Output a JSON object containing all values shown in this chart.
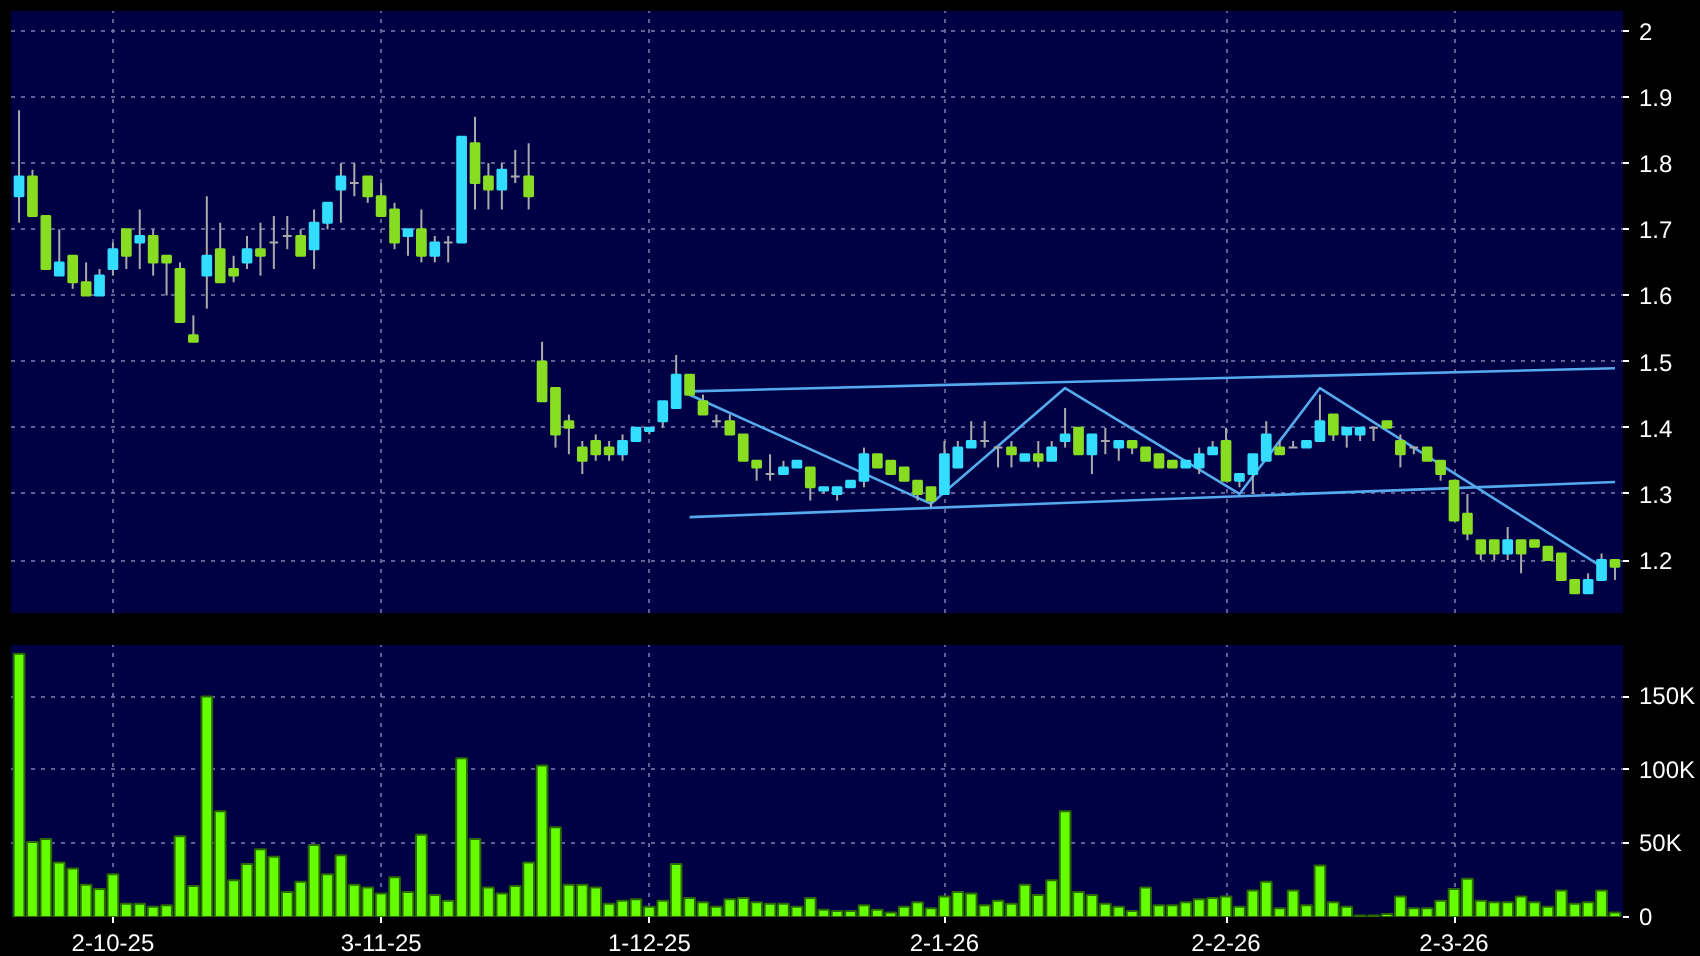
{
  "chart_data": [
    {
      "type": "candlestick",
      "categories": [
        null,
        null,
        null,
        null,
        null,
        null,
        null,
        null,
        null,
        null,
        null,
        null,
        null,
        null,
        null,
        null,
        null,
        null,
        null,
        null,
        null,
        null,
        null,
        null,
        null,
        null,
        null,
        null,
        null,
        null,
        null,
        null,
        null,
        null,
        null,
        null,
        null,
        null,
        null,
        null,
        null,
        null,
        null,
        null,
        null,
        null,
        null,
        null,
        null,
        null,
        null,
        null,
        null,
        null,
        null,
        null,
        null,
        null,
        null,
        null,
        null,
        null,
        null,
        null,
        null,
        null,
        null,
        null,
        null,
        null,
        null,
        null,
        null,
        null,
        null,
        null,
        null,
        null,
        null,
        null,
        null,
        null,
        null,
        null,
        null,
        null,
        null,
        null,
        null,
        null,
        null,
        null,
        null,
        null,
        null,
        null,
        null,
        null,
        null,
        null,
        null,
        null,
        null,
        null,
        null,
        null,
        null,
        null,
        null,
        null,
        null,
        null,
        null,
        null,
        null,
        null,
        null,
        null,
        null,
        null
      ],
      "ohlc": [
        [
          1.75,
          1.88,
          1.71,
          1.78
        ],
        [
          1.78,
          1.79,
          1.72,
          1.72
        ],
        [
          1.72,
          1.72,
          1.64,
          1.64
        ],
        [
          1.63,
          1.7,
          1.63,
          1.65
        ],
        [
          1.66,
          1.66,
          1.61,
          1.62
        ],
        [
          1.62,
          1.65,
          1.6,
          1.6
        ],
        [
          1.6,
          1.64,
          1.6,
          1.63
        ],
        [
          1.64,
          1.68,
          1.63,
          1.67
        ],
        [
          1.7,
          1.7,
          1.64,
          1.66
        ],
        [
          1.68,
          1.73,
          1.64,
          1.69
        ],
        [
          1.69,
          1.7,
          1.63,
          1.65
        ],
        [
          1.66,
          1.66,
          1.6,
          1.65
        ],
        [
          1.64,
          1.65,
          1.56,
          1.56
        ],
        [
          1.54,
          1.57,
          1.53,
          1.53
        ],
        [
          1.63,
          1.75,
          1.58,
          1.66
        ],
        [
          1.67,
          1.71,
          1.62,
          1.62
        ],
        [
          1.64,
          1.66,
          1.62,
          1.63
        ],
        [
          1.65,
          1.69,
          1.64,
          1.67
        ],
        [
          1.67,
          1.71,
          1.63,
          1.66
        ],
        [
          1.68,
          1.72,
          1.64,
          1.68
        ],
        [
          1.69,
          1.72,
          1.67,
          1.69
        ],
        [
          1.69,
          1.7,
          1.66,
          1.66
        ],
        [
          1.67,
          1.73,
          1.64,
          1.71
        ],
        [
          1.71,
          1.74,
          1.7,
          1.74
        ],
        [
          1.76,
          1.8,
          1.71,
          1.78
        ],
        [
          1.77,
          1.8,
          1.75,
          1.77
        ],
        [
          1.78,
          1.78,
          1.74,
          1.75
        ],
        [
          1.75,
          1.77,
          1.72,
          1.72
        ],
        [
          1.73,
          1.74,
          1.67,
          1.68
        ],
        [
          1.69,
          1.7,
          1.66,
          1.7
        ],
        [
          1.7,
          1.73,
          1.65,
          1.66
        ],
        [
          1.66,
          1.69,
          1.65,
          1.68
        ],
        [
          1.68,
          1.69,
          1.65,
          1.68
        ],
        [
          1.68,
          1.84,
          1.68,
          1.84
        ],
        [
          1.83,
          1.87,
          1.73,
          1.77
        ],
        [
          1.78,
          1.8,
          1.73,
          1.76
        ],
        [
          1.76,
          1.8,
          1.73,
          1.79
        ],
        [
          1.78,
          1.82,
          1.77,
          1.78
        ],
        [
          1.78,
          1.83,
          1.73,
          1.75
        ],
        [
          1.5,
          1.53,
          1.44,
          1.44
        ],
        [
          1.46,
          1.46,
          1.37,
          1.39
        ],
        [
          1.41,
          1.42,
          1.36,
          1.4
        ],
        [
          1.37,
          1.38,
          1.33,
          1.35
        ],
        [
          1.38,
          1.39,
          1.35,
          1.36
        ],
        [
          1.37,
          1.38,
          1.35,
          1.36
        ],
        [
          1.36,
          1.39,
          1.35,
          1.38
        ],
        [
          1.38,
          1.4,
          1.38,
          1.4
        ],
        [
          1.395,
          1.4,
          1.39,
          1.4
        ],
        [
          1.41,
          1.44,
          1.4,
          1.44
        ],
        [
          1.43,
          1.51,
          1.43,
          1.48
        ],
        [
          1.48,
          1.48,
          1.45,
          1.45
        ],
        [
          1.44,
          1.45,
          1.42,
          1.42
        ],
        [
          1.41,
          1.42,
          1.4,
          1.41
        ],
        [
          1.41,
          1.42,
          1.39,
          1.39
        ],
        [
          1.39,
          1.39,
          1.35,
          1.35
        ],
        [
          1.35,
          1.35,
          1.32,
          1.34
        ],
        [
          1.33,
          1.36,
          1.32,
          1.33
        ],
        [
          1.33,
          1.35,
          1.33,
          1.34
        ],
        [
          1.34,
          1.35,
          1.34,
          1.35
        ],
        [
          1.34,
          1.34,
          1.29,
          1.31
        ],
        [
          1.305,
          1.31,
          1.3,
          1.31
        ],
        [
          1.3,
          1.31,
          1.29,
          1.31
        ],
        [
          1.31,
          1.32,
          1.31,
          1.32
        ],
        [
          1.32,
          1.37,
          1.31,
          1.36
        ],
        [
          1.36,
          1.36,
          1.34,
          1.34
        ],
        [
          1.35,
          1.35,
          1.33,
          1.33
        ],
        [
          1.34,
          1.34,
          1.32,
          1.32
        ],
        [
          1.32,
          1.32,
          1.29,
          1.3
        ],
        [
          1.31,
          1.31,
          1.28,
          1.29
        ],
        [
          1.3,
          1.38,
          1.3,
          1.36
        ],
        [
          1.34,
          1.38,
          1.34,
          1.37
        ],
        [
          1.37,
          1.41,
          1.37,
          1.38
        ],
        [
          1.38,
          1.41,
          1.37,
          1.38
        ],
        [
          1.37,
          1.37,
          1.34,
          1.37
        ],
        [
          1.37,
          1.38,
          1.34,
          1.36
        ],
        [
          1.35,
          1.36,
          1.35,
          1.36
        ],
        [
          1.36,
          1.38,
          1.34,
          1.35
        ],
        [
          1.35,
          1.38,
          1.35,
          1.37
        ],
        [
          1.38,
          1.43,
          1.37,
          1.39
        ],
        [
          1.4,
          1.4,
          1.36,
          1.36
        ],
        [
          1.36,
          1.39,
          1.33,
          1.39
        ],
        [
          1.38,
          1.4,
          1.36,
          1.38
        ],
        [
          1.37,
          1.38,
          1.35,
          1.38
        ],
        [
          1.38,
          1.38,
          1.36,
          1.37
        ],
        [
          1.37,
          1.37,
          1.35,
          1.35
        ],
        [
          1.36,
          1.36,
          1.34,
          1.34
        ],
        [
          1.35,
          1.35,
          1.34,
          1.34
        ],
        [
          1.34,
          1.35,
          1.34,
          1.35
        ],
        [
          1.34,
          1.37,
          1.33,
          1.36
        ],
        [
          1.36,
          1.38,
          1.36,
          1.37
        ],
        [
          1.38,
          1.4,
          1.32,
          1.32
        ],
        [
          1.32,
          1.33,
          1.31,
          1.33
        ],
        [
          1.33,
          1.36,
          1.3,
          1.36
        ],
        [
          1.35,
          1.41,
          1.35,
          1.39
        ],
        [
          1.37,
          1.38,
          1.36,
          1.36
        ],
        [
          1.37,
          1.38,
          1.37,
          1.37
        ],
        [
          1.37,
          1.38,
          1.37,
          1.38
        ],
        [
          1.38,
          1.45,
          1.38,
          1.41
        ],
        [
          1.42,
          1.42,
          1.38,
          1.39
        ],
        [
          1.39,
          1.4,
          1.37,
          1.4
        ],
        [
          1.39,
          1.4,
          1.38,
          1.4
        ],
        [
          1.4,
          1.4,
          1.38,
          1.4
        ],
        [
          1.41,
          1.41,
          1.4,
          1.4
        ],
        [
          1.38,
          1.39,
          1.34,
          1.36
        ],
        [
          1.37,
          1.37,
          1.36,
          1.37
        ],
        [
          1.37,
          1.37,
          1.35,
          1.35
        ],
        [
          1.35,
          1.35,
          1.32,
          1.33
        ],
        [
          1.32,
          1.32,
          1.26,
          1.26
        ],
        [
          1.27,
          1.3,
          1.23,
          1.24
        ],
        [
          1.23,
          1.23,
          1.2,
          1.21
        ],
        [
          1.23,
          1.23,
          1.2,
          1.21
        ],
        [
          1.21,
          1.25,
          1.2,
          1.23
        ],
        [
          1.23,
          1.23,
          1.18,
          1.21
        ],
        [
          1.23,
          1.23,
          1.22,
          1.22
        ],
        [
          1.22,
          1.22,
          1.2,
          1.2
        ],
        [
          1.21,
          1.21,
          1.17,
          1.17
        ],
        [
          1.17,
          1.17,
          1.15,
          1.15
        ],
        [
          1.15,
          1.18,
          1.15,
          1.17
        ],
        [
          1.17,
          1.21,
          1.17,
          1.2
        ],
        [
          1.2,
          1.2,
          1.17,
          1.19
        ]
      ],
      "colors": [
        "#33ddff",
        "#88dd22",
        "#88dd22",
        "#33ddff",
        "#88dd22",
        "#88dd22",
        "#33ddff",
        "#33ddff",
        "#88dd22",
        "#33ddff",
        "#88dd22",
        "#88dd22",
        "#88dd22",
        "#88dd22",
        "#33ddff",
        "#88dd22",
        "#88dd22",
        "#33ddff",
        "#88dd22",
        "#aaaaaa",
        "#aaaaaa",
        "#88dd22",
        "#33ddff",
        "#33ddff",
        "#33ddff",
        "#aaaaaa",
        "#88dd22",
        "#88dd22",
        "#88dd22",
        "#33ddff",
        "#88dd22",
        "#33ddff",
        "#aaaaaa",
        "#33ddff",
        "#88dd22",
        "#88dd22",
        "#33ddff",
        "#aaaaaa",
        "#88dd22",
        "#88dd22",
        "#88dd22",
        "#88dd22",
        "#88dd22",
        "#88dd22",
        "#88dd22",
        "#33ddff",
        "#33ddff",
        "#33ddff",
        "#33ddff",
        "#33ddff",
        "#88dd22",
        "#88dd22",
        "#aaaaaa",
        "#88dd22",
        "#88dd22",
        "#88dd22",
        "#aaaaaa",
        "#33ddff",
        "#33ddff",
        "#88dd22",
        "#33ddff",
        "#33ddff",
        "#33ddff",
        "#33ddff",
        "#88dd22",
        "#88dd22",
        "#88dd22",
        "#88dd22",
        "#88dd22",
        "#33ddff",
        "#33ddff",
        "#33ddff",
        "#aaaaaa",
        "#aaaaaa",
        "#88dd22",
        "#33ddff",
        "#88dd22",
        "#33ddff",
        "#33ddff",
        "#88dd22",
        "#33ddff",
        "#aaaaaa",
        "#33ddff",
        "#88dd22",
        "#88dd22",
        "#88dd22",
        "#88dd22",
        "#33ddff",
        "#33ddff",
        "#33ddff",
        "#88dd22",
        "#33ddff",
        "#33ddff",
        "#33ddff",
        "#88dd22",
        "#aaaaaa",
        "#33ddff",
        "#33ddff",
        "#88dd22",
        "#33ddff",
        "#33ddff",
        "#aaaaaa",
        "#88dd22",
        "#88dd22",
        "#aaaaaa",
        "#88dd22",
        "#88dd22",
        "#88dd22",
        "#88dd22",
        "#88dd22",
        "#88dd22",
        "#33ddff",
        "#88dd22",
        "#88dd22",
        "#88dd22",
        "#88dd22",
        "#88dd22",
        "#33ddff",
        "#33ddff",
        "#88dd22"
      ],
      "series": [
        {
          "type": "line",
          "color": "#55aaee",
          "values": [
            null,
            null,
            null,
            null,
            null,
            null,
            null,
            null,
            null,
            null,
            null,
            null,
            null,
            null,
            null,
            null,
            null,
            null,
            null,
            null,
            null,
            null,
            null,
            null,
            null,
            null,
            null,
            null,
            null,
            null,
            null,
            null,
            null,
            null,
            null,
            null,
            null,
            null,
            null,
            null,
            null,
            null,
            null,
            null,
            null,
            null,
            null,
            null,
            null,
            null,
            1.455,
            null,
            null,
            null,
            null,
            null,
            null,
            null,
            null,
            null,
            null,
            null,
            null,
            null,
            null,
            null,
            null,
            null,
            null,
            null,
            null,
            null,
            null,
            null,
            null,
            null,
            null,
            null,
            null,
            null,
            null,
            null,
            null,
            null,
            null,
            null,
            null,
            null,
            null,
            null,
            null,
            null,
            null,
            null,
            null,
            null,
            null,
            null,
            null,
            null,
            null,
            null,
            null,
            null,
            null,
            null,
            null,
            null,
            null,
            null,
            null,
            null,
            null,
            null,
            null,
            null,
            null,
            null,
            null,
            1.49
          ]
        },
        {
          "type": "line",
          "color": "#55aaee",
          "values": [
            null,
            null,
            null,
            null,
            null,
            null,
            null,
            null,
            null,
            null,
            null,
            null,
            null,
            null,
            null,
            null,
            null,
            null,
            null,
            null,
            null,
            null,
            null,
            null,
            null,
            null,
            null,
            null,
            null,
            null,
            null,
            null,
            null,
            null,
            null,
            null,
            null,
            null,
            null,
            null,
            null,
            null,
            null,
            null,
            null,
            null,
            null,
            null,
            null,
            null,
            1.265,
            null,
            null,
            null,
            null,
            null,
            null,
            null,
            null,
            null,
            null,
            null,
            null,
            null,
            null,
            null,
            null,
            null,
            null,
            null,
            null,
            null,
            null,
            null,
            null,
            null,
            null,
            null,
            null,
            null,
            null,
            null,
            null,
            null,
            null,
            null,
            null,
            null,
            null,
            null,
            null,
            null,
            null,
            null,
            null,
            null,
            null,
            null,
            null,
            null,
            null,
            null,
            null,
            null,
            null,
            null,
            null,
            null,
            null,
            null,
            null,
            null,
            null,
            null,
            null,
            null,
            null,
            null,
            null,
            1.318
          ]
        },
        {
          "type": "line",
          "color": "#55aaee",
          "values": [
            null,
            null,
            null,
            null,
            null,
            null,
            null,
            null,
            null,
            null,
            null,
            null,
            null,
            null,
            null,
            null,
            null,
            null,
            null,
            null,
            null,
            null,
            null,
            null,
            null,
            null,
            null,
            null,
            null,
            null,
            null,
            null,
            null,
            null,
            null,
            null,
            null,
            null,
            null,
            null,
            null,
            null,
            null,
            null,
            null,
            null,
            null,
            null,
            null,
            null,
            1.45,
            null,
            null,
            null,
            null,
            null,
            null,
            null,
            null,
            null,
            null,
            null,
            null,
            null,
            null,
            null,
            null,
            null,
            1.285,
            null,
            null,
            null,
            null,
            null,
            null,
            null,
            null,
            null,
            1.46,
            null,
            null,
            null,
            null,
            null,
            null,
            null,
            null,
            null,
            null,
            null,
            null,
            1.3,
            null,
            null,
            null,
            null,
            null,
            1.46,
            null,
            null,
            null,
            null,
            null,
            null,
            null,
            null,
            null,
            null,
            null,
            null,
            null,
            null,
            null,
            null,
            null,
            null,
            null,
            null,
            1.19,
            null
          ]
        }
      ],
      "ylim": [
        1.12,
        2.03
      ],
      "yticks": [
        1.2,
        1.3,
        1.4,
        1.5,
        1.6,
        1.7,
        1.8,
        1.9,
        2
      ],
      "grid": true,
      "tick_labels": "y"
    },
    {
      "type": "bar",
      "categories": [
        null,
        null,
        null,
        null,
        null,
        null,
        null,
        "2-10-25",
        null,
        null,
        null,
        null,
        null,
        null,
        null,
        null,
        null,
        null,
        null,
        null,
        null,
        null,
        null,
        null,
        null,
        null,
        null,
        "3-11-25",
        null,
        null,
        null,
        null,
        null,
        null,
        null,
        null,
        null,
        null,
        null,
        null,
        null,
        null,
        null,
        null,
        null,
        null,
        null,
        "1-12-25",
        null,
        null,
        null,
        null,
        null,
        null,
        null,
        null,
        null,
        null,
        null,
        null,
        null,
        null,
        null,
        null,
        null,
        null,
        null,
        null,
        null,
        "2-1-26",
        null,
        null,
        null,
        null,
        null,
        null,
        null,
        null,
        null,
        null,
        null,
        null,
        null,
        null,
        null,
        null,
        null,
        null,
        null,
        null,
        "2-2-26",
        null,
        null,
        null,
        null,
        null,
        null,
        null,
        null,
        null,
        null,
        null,
        null,
        null,
        null,
        null,
        null,
        "2-3-26",
        null,
        null,
        null,
        null,
        null,
        null,
        null,
        null,
        null,
        null,
        null,
        null
      ],
      "values": [
        179000,
        51000,
        53000,
        37000,
        33000,
        22000,
        19000,
        29000,
        9000,
        9000,
        7000,
        8000,
        55000,
        21000,
        150000,
        72000,
        25000,
        36000,
        46000,
        41000,
        17000,
        24000,
        49000,
        29000,
        42000,
        22000,
        20000,
        16000,
        27000,
        17000,
        56000,
        15000,
        11000,
        108000,
        53000,
        20000,
        16000,
        21000,
        37000,
        103000,
        61000,
        22000,
        22000,
        20000,
        9000,
        11000,
        12000,
        7000,
        11000,
        36000,
        13000,
        10000,
        7000,
        12000,
        13000,
        10000,
        9000,
        9000,
        7000,
        13000,
        5000,
        4000,
        4000,
        8000,
        5000,
        3000,
        7000,
        10000,
        6000,
        14000,
        17000,
        16000,
        8000,
        11000,
        9000,
        22000,
        15000,
        25000,
        72000,
        17000,
        15000,
        9000,
        7000,
        4000,
        20000,
        8000,
        8000,
        10000,
        12000,
        13000,
        14000,
        7000,
        18000,
        24000,
        6000,
        18000,
        8000,
        35000,
        10000,
        7000,
        1000,
        1000,
        2000,
        14000,
        6000,
        6000,
        11000,
        19000,
        26000,
        11000,
        10000,
        10000,
        14000,
        10000,
        7000,
        18000,
        9000,
        10000,
        18000,
        3000
      ],
      "color": "#66ff00",
      "ylim": [
        0,
        185000
      ],
      "yticks": [
        {
          "value": 0,
          "label": "0"
        },
        {
          "value": 50000,
          "label": "50K"
        },
        {
          "value": 100000,
          "label": "100K"
        },
        {
          "value": 150000,
          "label": "150K"
        }
      ],
      "grid": true
    }
  ]
}
